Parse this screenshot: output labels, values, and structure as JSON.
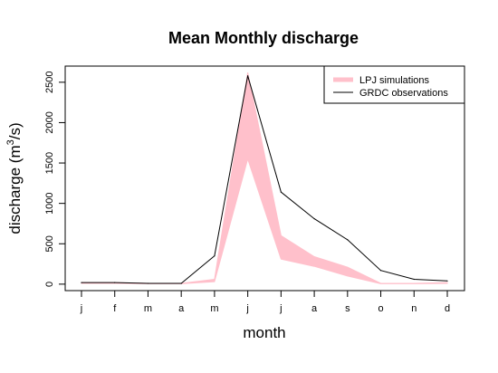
{
  "chart_data": {
    "type": "line",
    "title": "Mean Monthly discharge",
    "xlabel": "month",
    "ylabel": "discharge (m",
    "ylabel_sup": "3",
    "ylabel_tail": "/s)",
    "categories": [
      "j",
      "f",
      "m",
      "a",
      "m",
      "j",
      "j",
      "a",
      "s",
      "o",
      "n",
      "d"
    ],
    "ylim": [
      -80,
      2700
    ],
    "yticks": [
      0,
      500,
      1000,
      1500,
      2000,
      2500
    ],
    "grid": false,
    "legend_position": "top-right",
    "series": [
      {
        "name": "LPJ simulations",
        "style": "band",
        "color": "#ffc0cb",
        "upper": [
          20,
          20,
          10,
          10,
          60,
          2620,
          600,
          340,
          210,
          10,
          10,
          20
        ],
        "lower": [
          10,
          10,
          5,
          5,
          30,
          1550,
          310,
          220,
          100,
          5,
          5,
          10
        ]
      },
      {
        "name": "GRDC observations",
        "style": "line",
        "color": "#000000",
        "values": [
          20,
          20,
          10,
          10,
          350,
          2580,
          1140,
          810,
          550,
          170,
          60,
          40
        ]
      }
    ]
  }
}
